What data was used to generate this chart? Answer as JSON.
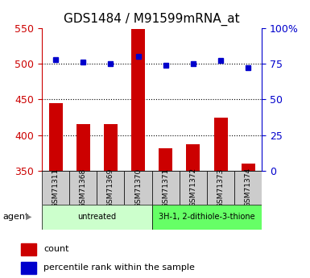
{
  "title": "GDS1484 / M91599mRNA_at",
  "samples": [
    "GSM71311",
    "GSM71368",
    "GSM71369",
    "GSM71370",
    "GSM71371",
    "GSM71372",
    "GSM71373",
    "GSM71374"
  ],
  "bar_values": [
    445,
    415,
    416,
    548,
    382,
    387,
    425,
    360
  ],
  "percentile_values": [
    78,
    76,
    75,
    80,
    74,
    75,
    77,
    72
  ],
  "bar_color": "#cc0000",
  "marker_color": "#0000cc",
  "ylim_left": [
    350,
    550
  ],
  "ylim_right": [
    0,
    100
  ],
  "yticks_left": [
    350,
    400,
    450,
    500,
    550
  ],
  "yticks_right": [
    0,
    25,
    50,
    75,
    100
  ],
  "ytick_labels_right": [
    "0",
    "25",
    "50",
    "75",
    "100%"
  ],
  "grid_lines": [
    400,
    450,
    500
  ],
  "agent_groups": [
    {
      "label": "untreated",
      "indices": [
        0,
        1,
        2,
        3
      ],
      "color": "#ccffcc"
    },
    {
      "label": "3H-1, 2-dithiole-3-thione",
      "indices": [
        4,
        5,
        6,
        7
      ],
      "color": "#66ff66"
    }
  ],
  "agent_label": "agent",
  "legend_count_label": "count",
  "legend_percentile_label": "percentile rank within the sample",
  "bar_color_label": "#cc0000",
  "marker_color_label": "#0000cc",
  "bar_bottom": 350,
  "sample_box_color": "#cccccc",
  "title_fontsize": 11,
  "tick_fontsize": 9
}
